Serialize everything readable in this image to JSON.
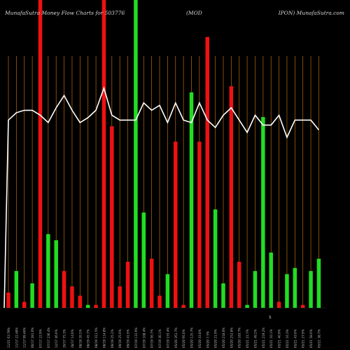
{
  "header": {
    "title_left": "MunafaSutra  Money Flow  Charts for 503776",
    "title_mid": "(MOD",
    "title_right": "IPON) MunafaSutra.com"
  },
  "chart_data": {
    "type": "bar",
    "colors": {
      "up": "#22dd22",
      "down": "#ee1111",
      "line": "#ffffff",
      "grid": "#b86e0a",
      "background": "#000000"
    },
    "ylim": [
      0,
      100
    ],
    "axis_marker": "$",
    "bars": [
      {
        "x": "11/21 63.79%",
        "value": 5,
        "dir": "down"
      },
      {
        "x": "11/17 22.48%",
        "value": 12,
        "dir": "up"
      },
      {
        "x": "11/17 99.46%",
        "value": 2,
        "dir": "down"
      },
      {
        "x": "06/17 281.6%",
        "value": 8,
        "dir": "up"
      },
      {
        "x": "07/17 22.9%",
        "value": 100,
        "dir": "down"
      },
      {
        "x": "07/17 236.4%",
        "value": 24,
        "dir": "up"
      },
      {
        "x": "12/17 46.6%",
        "value": 22,
        "dir": "up"
      },
      {
        "x": "26/17 75.3%",
        "value": 12,
        "dir": "down"
      },
      {
        "x": "28/17 14.0%",
        "value": 7,
        "dir": "down"
      },
      {
        "x": "08/18 26.5%",
        "value": 4,
        "dir": "down"
      },
      {
        "x": "08/19 45.7%",
        "value": 1,
        "dir": "up"
      },
      {
        "x": "08/19 311.5%",
        "value": 1,
        "dir": "down"
      },
      {
        "x": "08/19 114.8%",
        "value": 100,
        "dir": "down"
      },
      {
        "x": "09/19 25.2%",
        "value": 59,
        "dir": "down"
      },
      {
        "x": "09/19 25.6%",
        "value": 7,
        "dir": "down"
      },
      {
        "x": "09/19 41.6%",
        "value": 15,
        "dir": "down"
      },
      {
        "x": "07/19 131.6%",
        "value": 100,
        "dir": "up"
      },
      {
        "x": "07/19 108.4%",
        "value": 31,
        "dir": "up"
      },
      {
        "x": "07/19 56.7%",
        "value": 16,
        "dir": "down"
      },
      {
        "x": "07/19 30.1%",
        "value": 4,
        "dir": "down"
      },
      {
        "x": "07/19 155.4%",
        "value": 11,
        "dir": "up"
      },
      {
        "x": "05/20 261.7%",
        "value": 54,
        "dir": "down"
      },
      {
        "x": "05/20 95.0%",
        "value": 1,
        "dir": "down"
      },
      {
        "x": "05/20 125.7%",
        "value": 70,
        "dir": "up"
      },
      {
        "x": "05/20 43.8%",
        "value": 54,
        "dir": "down"
      },
      {
        "x": "05/20 7.5%",
        "value": 88,
        "dir": "down"
      },
      {
        "x": "05/20 21.9%",
        "value": 32,
        "dir": "up"
      },
      {
        "x": "05/20 218.0%",
        "value": 8,
        "dir": "up"
      },
      {
        "x": "05/20 252.8%",
        "value": 72,
        "dir": "down"
      },
      {
        "x": "05/20 183.7%",
        "value": 15,
        "dir": "down"
      },
      {
        "x": "05/21 21.7%",
        "value": 1,
        "dir": "up"
      },
      {
        "x": "05/21 49.2%",
        "value": 12,
        "dir": "up"
      },
      {
        "x": "05/21 219.2%",
        "value": 62,
        "dir": "up"
      },
      {
        "x": "05/21 10.1%",
        "value": 18,
        "dir": "up"
      },
      {
        "x": "05/21 46.9%",
        "value": 2,
        "dir": "down"
      },
      {
        "x": "05/21 16.3%",
        "value": 11,
        "dir": "up"
      },
      {
        "x": "05/21 43.6%",
        "value": 13,
        "dir": "up"
      },
      {
        "x": "05/21 27.9%",
        "value": 1,
        "dir": "down"
      },
      {
        "x": "05/21 58.6%",
        "value": 12,
        "dir": "up"
      },
      {
        "x": "05/21 38.7%",
        "value": 16,
        "dir": "up"
      }
    ],
    "line": [
      70,
      73,
      74,
      74,
      72,
      69,
      75,
      80,
      74,
      69,
      71,
      74,
      83,
      72,
      70,
      70,
      70,
      77,
      74,
      76,
      69,
      77,
      70,
      69,
      77,
      70,
      67,
      72,
      75,
      70,
      65,
      72,
      68,
      68,
      72,
      63,
      70,
      70,
      70,
      66
    ]
  }
}
